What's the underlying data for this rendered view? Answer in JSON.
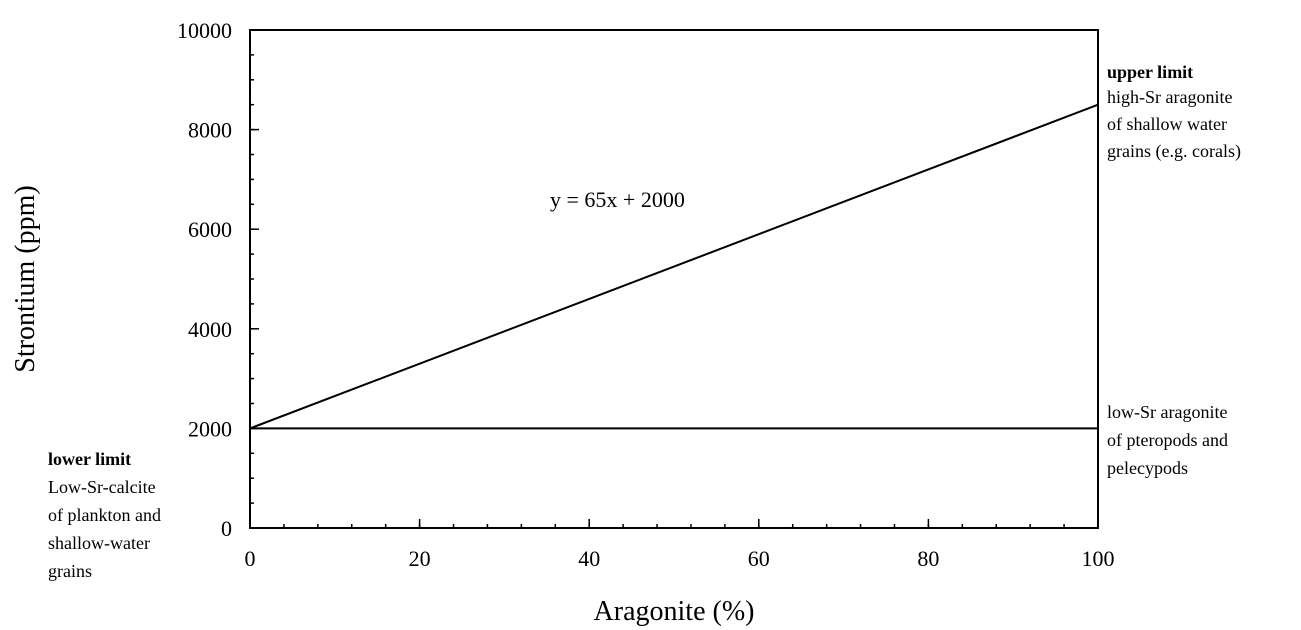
{
  "chart_data": {
    "type": "line",
    "xlabel": "Aragonite (%)",
    "ylabel": "Strontium (ppm)",
    "xlim": [
      0,
      100
    ],
    "ylim": [
      0,
      10000
    ],
    "x_ticks": [
      0,
      20,
      40,
      60,
      80,
      100
    ],
    "y_ticks": [
      0,
      2000,
      4000,
      6000,
      8000,
      10000
    ],
    "x_tick_labels": [
      "0",
      "20",
      "40",
      "60",
      "80",
      "100"
    ],
    "y_tick_labels": [
      "0",
      "2000",
      "4000",
      "6000",
      "8000",
      "10000"
    ],
    "series": [
      {
        "x": [
          0,
          100
        ],
        "y": [
          2000,
          8500
        ]
      },
      {
        "x": [
          0,
          100
        ],
        "y": [
          2000,
          2000
        ]
      }
    ],
    "equation": "y = 65x + 2000",
    "grid": false
  },
  "annotations": {
    "upper": {
      "title": "upper limit",
      "lines": [
        "high-Sr aragonite",
        "of shallow water",
        "grains (e.g. corals)"
      ]
    },
    "low_sr": {
      "lines": [
        "low-Sr aragonite",
        "of pteropods and",
        "pelecypods"
      ]
    },
    "lower": {
      "title": "lower limit",
      "lines": [
        "Low-Sr-calcite",
        "of plankton and",
        "shallow-water",
        "grains"
      ]
    }
  }
}
